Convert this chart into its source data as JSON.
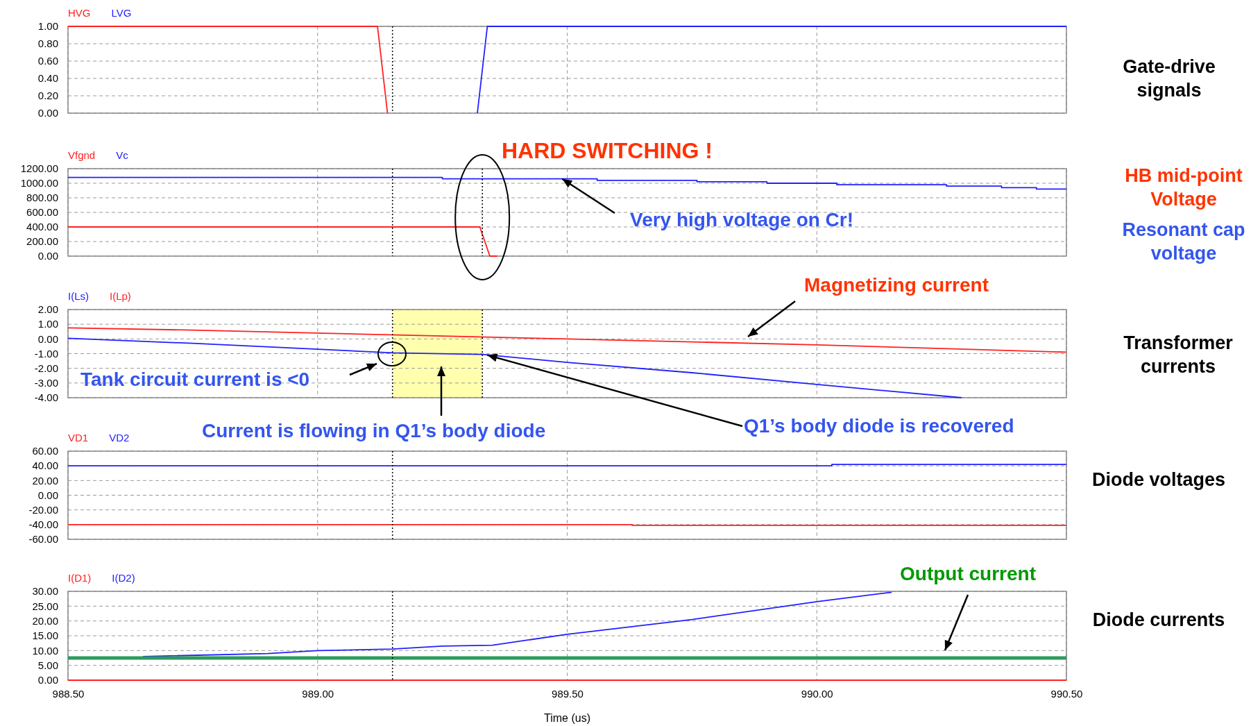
{
  "chart_data": [
    {
      "type": "line",
      "xlim": [
        988.5,
        990.5
      ],
      "xticks": [
        988.5,
        989,
        989.5,
        990,
        990.5
      ],
      "ylim": [
        0,
        1
      ],
      "yticks": [
        {
          "value": 0,
          "label": "0.00"
        },
        {
          "value": 0.2,
          "label": "0.20"
        },
        {
          "value": 0.4,
          "label": "0.40"
        },
        {
          "value": 0.6,
          "label": "0.60"
        },
        {
          "value": 0.8,
          "label": "0.80"
        },
        {
          "value": 1,
          "label": "1.00"
        }
      ],
      "tick_labels": "y",
      "grid": true,
      "legend": "top left",
      "line_style": "solid",
      "series": [
        {
          "name": "HVG",
          "color": "#ff2020",
          "x": [
            988.5,
            989.12,
            989.14
          ],
          "values": [
            1,
            1,
            0
          ]
        },
        {
          "name": "LVG",
          "color": "#2020ff",
          "x": [
            989.32,
            989.34,
            990.5
          ],
          "values": [
            0,
            1,
            1
          ]
        }
      ],
      "ref_lines": [
        {
          "axis": "x",
          "value": 989.15,
          "color": "#000000",
          "line_style": "dotted"
        }
      ],
      "annotations": [
        "Gate-drive signals"
      ]
    },
    {
      "type": "line",
      "xlim": [
        988.5,
        990.5
      ],
      "xticks": [
        988.5,
        989,
        989.5,
        990,
        990.5
      ],
      "ylim": [
        0,
        1200
      ],
      "yticks": [
        {
          "value": 0,
          "label": "0.00"
        },
        {
          "value": 200,
          "label": "200.00"
        },
        {
          "value": 400,
          "label": "400.00"
        },
        {
          "value": 600,
          "label": "600.00"
        },
        {
          "value": 800,
          "label": "800.00"
        },
        {
          "value": 1000,
          "label": "1000.00"
        },
        {
          "value": 1200,
          "label": "1200.00"
        }
      ],
      "tick_labels": "y",
      "grid": true,
      "legend": "top left",
      "line_style": "solid",
      "series": [
        {
          "name": "Vfgnd",
          "color": "#ff2020",
          "x": [
            988.5,
            989.325,
            989.345,
            989.36
          ],
          "values": [
            400,
            400,
            0,
            0
          ]
        },
        {
          "name": "Vc",
          "color": "#2020ff",
          "x": [
            988.5,
            989.25,
            989.25,
            989.56,
            989.56,
            989.76,
            989.76,
            989.9,
            989.9,
            990.04,
            990.04,
            990.26,
            990.26,
            990.37,
            990.37,
            990.44,
            990.44,
            990.5
          ],
          "values": [
            1080,
            1080,
            1060,
            1060,
            1040,
            1040,
            1020,
            1020,
            1000,
            1000,
            980,
            980,
            960,
            960,
            940,
            940,
            920,
            920
          ]
        }
      ],
      "ref_lines": [
        {
          "axis": "x",
          "value": 989.15,
          "color": "#000000",
          "line_style": "dotted"
        },
        {
          "axis": "x",
          "value": 989.33,
          "color": "#000000",
          "line_style": "dotted"
        }
      ],
      "annotations": [
        "HARD SWITCHING !",
        {
          "text": "Very high voltage on Cr!",
          "x": 989.49,
          "y": 1060
        },
        "HB mid-point Voltage",
        "Resonant cap voltage"
      ]
    },
    {
      "type": "line",
      "xlim": [
        988.5,
        990.5
      ],
      "xticks": [
        988.5,
        989,
        989.5,
        990,
        990.5
      ],
      "ylim": [
        -4,
        2
      ],
      "yticks": [
        {
          "value": -4,
          "label": "-4.00"
        },
        {
          "value": -3,
          "label": "-3.00"
        },
        {
          "value": -2,
          "label": "-2.00"
        },
        {
          "value": -1,
          "label": "-1.00"
        },
        {
          "value": 0,
          "label": "0.00"
        },
        {
          "value": 1,
          "label": "1.00"
        },
        {
          "value": 2,
          "label": "2.00"
        }
      ],
      "tick_labels": "y",
      "grid": true,
      "legend": "top left",
      "line_style": "solid",
      "series": [
        {
          "name": "I(Ls)",
          "color": "#2020ff",
          "x": [
            988.5,
            988.75,
            989.0,
            989.15,
            989.33,
            989.5,
            989.75,
            990.0,
            990.29
          ],
          "values": [
            0.05,
            -0.3,
            -0.7,
            -0.95,
            -1.05,
            -1.6,
            -2.3,
            -3.1,
            -4.0
          ]
        },
        {
          "name": "I(Lp)",
          "color": "#ff2020",
          "x": [
            988.5,
            988.75,
            989.0,
            989.25,
            989.5,
            989.75,
            990.0,
            990.25,
            990.5
          ],
          "values": [
            0.75,
            0.6,
            0.4,
            0.2,
            0.0,
            -0.2,
            -0.4,
            -0.65,
            -0.9
          ]
        }
      ],
      "bands": [
        {
          "axis": "x",
          "from": 989.15,
          "to": 989.33,
          "color": "#ffff99"
        }
      ],
      "ref_lines": [
        {
          "axis": "x",
          "value": 989.15,
          "color": "#000000",
          "line_style": "dotted"
        },
        {
          "axis": "x",
          "value": 989.33,
          "color": "#000000",
          "line_style": "dotted"
        }
      ],
      "annotations": [
        "Magnetizing current",
        "Tank circuit current is <0",
        "Current is flowing in Q1’s body diode",
        {
          "text": "Q1’s body diode is recovered",
          "x": 989.34,
          "y": -1.1
        },
        "Transformer currents"
      ]
    },
    {
      "type": "line",
      "xlim": [
        988.5,
        990.5
      ],
      "xticks": [
        988.5,
        989,
        989.5,
        990,
        990.5
      ],
      "ylim": [
        -60,
        60
      ],
      "yticks": [
        {
          "value": -60,
          "label": "-60.00"
        },
        {
          "value": -40,
          "label": "-40.00"
        },
        {
          "value": -20,
          "label": "-20.00"
        },
        {
          "value": 0,
          "label": "0.00"
        },
        {
          "value": 20,
          "label": "20.00"
        },
        {
          "value": 40,
          "label": "40.00"
        },
        {
          "value": 60,
          "label": "60.00"
        }
      ],
      "tick_labels": "y",
      "grid": true,
      "legend": "top left",
      "line_style": "solid",
      "series": [
        {
          "name": "VD1",
          "color": "#ff2020",
          "x": [
            988.5,
            989.63,
            989.63,
            990.5
          ],
          "values": [
            -40,
            -40,
            -41,
            -41
          ]
        },
        {
          "name": "VD2",
          "color": "#2020ff",
          "x": [
            988.5,
            990.03,
            990.03,
            990.5
          ],
          "values": [
            40,
            40,
            42,
            42
          ]
        }
      ],
      "ref_lines": [
        {
          "axis": "x",
          "value": 989.15,
          "color": "#000000",
          "line_style": "dotted"
        }
      ],
      "annotations": [
        "Diode voltages"
      ]
    },
    {
      "type": "line",
      "xlim": [
        988.5,
        990.5
      ],
      "xticks": [
        {
          "value": 988.5,
          "label": "988.50"
        },
        {
          "value": 989,
          "label": "989.00"
        },
        {
          "value": 989.5,
          "label": "989.50"
        },
        {
          "value": 990,
          "label": "990.00"
        },
        {
          "value": 990.5,
          "label": "990.50"
        }
      ],
      "ylim": [
        0,
        30
      ],
      "yticks": [
        {
          "value": 0,
          "label": "0.00"
        },
        {
          "value": 5,
          "label": "5.00"
        },
        {
          "value": 10,
          "label": "10.00"
        },
        {
          "value": 15,
          "label": "15.00"
        },
        {
          "value": 20,
          "label": "20.00"
        },
        {
          "value": 25,
          "label": "25.00"
        },
        {
          "value": 30,
          "label": "30.00"
        }
      ],
      "xlabel": "Time (us)",
      "grid": true,
      "legend": "top left",
      "line_style": "solid",
      "series": [
        {
          "name": "I(D1)",
          "color": "#ff2020",
          "x": [
            988.5,
            990.5
          ],
          "values": [
            0,
            0
          ]
        },
        {
          "name": "I(D2)",
          "color": "#2020ff",
          "x": [
            988.65,
            988.9,
            989.0,
            989.15,
            989.25,
            989.35,
            989.5,
            989.75,
            990.0,
            990.15
          ],
          "values": [
            8,
            9,
            10,
            10.5,
            11.5,
            11.8,
            15.5,
            20.5,
            26.5,
            29.7
          ]
        },
        {
          "color": "#2e9b5e",
          "x": [
            988.5,
            990.5
          ],
          "values": [
            7.5,
            7.5
          ]
        }
      ],
      "ref_lines": [
        {
          "axis": "x",
          "value": 989.15,
          "color": "#000000",
          "line_style": "dotted"
        }
      ],
      "annotations": [
        "Output current",
        "Diode currents"
      ]
    }
  ]
}
